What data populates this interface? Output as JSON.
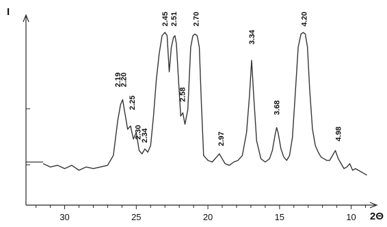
{
  "chart_data": {
    "type": "line",
    "title": "",
    "xlabel": "2Θ",
    "ylabel": "I",
    "x_reversed": true,
    "xlim": [
      32.7,
      8.5
    ],
    "ylim": [
      0,
      1
    ],
    "grid": false,
    "x_ticks": [
      30,
      25,
      20,
      15,
      10
    ],
    "x_tick_labels": [
      "30",
      "25",
      "20",
      "15",
      "10"
    ],
    "series": [
      {
        "x": [
          31.5,
          31.0,
          30.5,
          30.0,
          29.5,
          29.0,
          28.5,
          28.0,
          27.5,
          27.0,
          26.6,
          26.3,
          26.1,
          25.95,
          25.8,
          25.6,
          25.4,
          25.2,
          25.0,
          24.8,
          24.6,
          24.4,
          24.2,
          24.0,
          23.8,
          23.6,
          23.4,
          23.2,
          23.0,
          22.85,
          22.7,
          22.55,
          22.4,
          22.3,
          22.2,
          22.05,
          21.9,
          21.75,
          21.6,
          21.4,
          21.2,
          21.05,
          20.9,
          20.75,
          20.6,
          20.45,
          20.3,
          20.0,
          19.7,
          19.4,
          19.2,
          19.0,
          18.8,
          18.5,
          18.2,
          17.9,
          17.6,
          17.3,
          17.1,
          16.95,
          16.8,
          16.6,
          16.3,
          16.0,
          15.7,
          15.5,
          15.3,
          15.2,
          15.1,
          14.9,
          14.7,
          14.5,
          14.3,
          14.1,
          13.9,
          13.7,
          13.5,
          13.35,
          13.2,
          13.05,
          12.9,
          12.7,
          12.5,
          12.3,
          12.1,
          11.9,
          11.7,
          11.5,
          11.3,
          11.1,
          10.9,
          10.7,
          10.5,
          10.3,
          10.1,
          9.9,
          9.7,
          9.5,
          9.3,
          9.1,
          8.9
        ],
        "y": [
          0.19,
          0.17,
          0.18,
          0.16,
          0.18,
          0.15,
          0.17,
          0.16,
          0.17,
          0.18,
          0.24,
          0.45,
          0.55,
          0.58,
          0.5,
          0.4,
          0.42,
          0.34,
          0.38,
          0.27,
          0.25,
          0.28,
          0.26,
          0.3,
          0.48,
          0.7,
          0.86,
          0.97,
          0.99,
          0.97,
          0.75,
          0.9,
          0.96,
          0.97,
          0.92,
          0.7,
          0.48,
          0.5,
          0.43,
          0.52,
          0.9,
          0.97,
          0.98,
          0.97,
          0.9,
          0.55,
          0.24,
          0.21,
          0.2,
          0.23,
          0.25,
          0.22,
          0.19,
          0.18,
          0.2,
          0.21,
          0.24,
          0.38,
          0.6,
          0.82,
          0.6,
          0.33,
          0.22,
          0.2,
          0.22,
          0.27,
          0.37,
          0.41,
          0.38,
          0.28,
          0.23,
          0.21,
          0.24,
          0.35,
          0.62,
          0.9,
          0.98,
          0.99,
          0.98,
          0.9,
          0.65,
          0.4,
          0.3,
          0.26,
          0.23,
          0.22,
          0.21,
          0.21,
          0.24,
          0.27,
          0.22,
          0.19,
          0.16,
          0.17,
          0.19,
          0.15,
          0.16,
          0.15,
          0.14,
          0.13,
          0.12
        ]
      }
    ],
    "peak_labels": [
      {
        "text": "2.19",
        "x": 26.3,
        "y": 0.64
      },
      {
        "text": "2.20",
        "x": 25.9,
        "y": 0.64
      },
      {
        "text": "2.25",
        "x": 25.3,
        "y": 0.5
      },
      {
        "text": "2.30",
        "x": 24.9,
        "y": 0.32
      },
      {
        "text": "2.34",
        "x": 24.45,
        "y": 0.3
      },
      {
        "text": "2.45",
        "x": 23.0,
        "y": 1.01
      },
      {
        "text": "2.51",
        "x": 22.4,
        "y": 1.01
      },
      {
        "text": "2.58",
        "x": 21.8,
        "y": 0.55
      },
      {
        "text": "2.70",
        "x": 20.85,
        "y": 1.01
      },
      {
        "text": "2.97",
        "x": 19.1,
        "y": 0.28
      },
      {
        "text": "3.34",
        "x": 16.95,
        "y": 0.9
      },
      {
        "text": "3.68",
        "x": 15.2,
        "y": 0.47
      },
      {
        "text": "4.20",
        "x": 13.3,
        "y": 1.01
      },
      {
        "text": "4.98",
        "x": 10.9,
        "y": 0.31
      }
    ]
  }
}
